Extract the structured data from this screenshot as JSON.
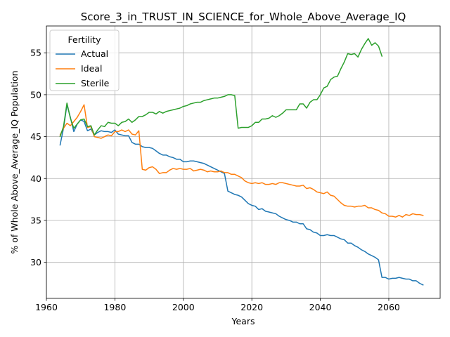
{
  "chart_data": {
    "type": "line",
    "title": "Score_3_in_TRUST_IN_SCIENCE_for_Whole_Above_Average_IQ",
    "xlabel": "Years",
    "ylabel": "% of Whole Above_Average_IQ Population",
    "xlim": [
      1960,
      2075
    ],
    "ylim": [
      25.7,
      58.2
    ],
    "xticks": [
      1960,
      1980,
      2000,
      2020,
      2040,
      2060
    ],
    "yticks": [
      30,
      35,
      40,
      45,
      50,
      55
    ],
    "grid": true,
    "legend": {
      "title": "Fertility",
      "placement": "top-left"
    },
    "series": [
      {
        "name": "Actual",
        "color": "#1f77b4",
        "x": [
          1964,
          1965,
          1966,
          1967,
          1968,
          1969,
          1970,
          1971,
          1972,
          1973,
          1974,
          1975,
          1976,
          1977,
          1978,
          1979,
          1980,
          1981,
          1982,
          1983,
          1984,
          1985,
          1986,
          1987,
          1988,
          1989,
          1990,
          1991,
          1992,
          1993,
          1994,
          1995,
          1996,
          1997,
          1998,
          1999,
          2000,
          2001,
          2002,
          2003,
          2004,
          2005,
          2006,
          2007,
          2008,
          2009,
          2010,
          2011,
          2012,
          2013,
          2014,
          2015,
          2016,
          2017,
          2018,
          2019,
          2020,
          2021,
          2022,
          2023,
          2024,
          2025,
          2026,
          2027,
          2028,
          2029,
          2030,
          2031,
          2032,
          2033,
          2034,
          2035,
          2036,
          2037,
          2038,
          2039,
          2040,
          2041,
          2042,
          2043,
          2044,
          2045,
          2046,
          2047,
          2048,
          2049,
          2050,
          2051,
          2052,
          2053,
          2054,
          2055,
          2056,
          2057,
          2058,
          2059,
          2060,
          2061,
          2062,
          2063,
          2064,
          2065,
          2066,
          2067,
          2068,
          2069,
          2070
        ],
        "y": [
          44.0,
          46.0,
          48.8,
          47.3,
          45.6,
          46.5,
          47.0,
          46.8,
          45.7,
          45.9,
          45.2,
          45.5,
          45.7,
          45.6,
          45.6,
          45.5,
          45.8,
          45.3,
          45.2,
          45.1,
          45.1,
          44.3,
          44.1,
          44.1,
          43.8,
          43.7,
          43.7,
          43.6,
          43.3,
          43.0,
          42.8,
          42.8,
          42.6,
          42.5,
          42.3,
          42.3,
          42.0,
          42.0,
          42.1,
          42.1,
          42.0,
          41.9,
          41.8,
          41.6,
          41.4,
          41.2,
          41.0,
          40.8,
          40.6,
          38.5,
          38.3,
          38.1,
          38.0,
          37.8,
          37.4,
          37.0,
          36.8,
          36.7,
          36.3,
          36.4,
          36.1,
          36.0,
          35.9,
          35.8,
          35.5,
          35.3,
          35.1,
          35.0,
          34.8,
          34.8,
          34.6,
          34.6,
          34.0,
          33.9,
          33.6,
          33.5,
          33.2,
          33.2,
          33.3,
          33.2,
          33.2,
          33.0,
          32.8,
          32.7,
          32.3,
          32.3,
          32.0,
          31.8,
          31.5,
          31.3,
          31.0,
          30.8,
          30.6,
          30.3,
          28.2,
          28.2,
          28.0,
          28.1,
          28.1,
          28.2,
          28.1,
          28.0,
          28.0,
          27.8,
          27.8,
          27.5,
          27.3
        ]
      },
      {
        "name": "Ideal",
        "color": "#ff7f0e",
        "x": [
          1964,
          1965,
          1966,
          1967,
          1968,
          1969,
          1970,
          1971,
          1972,
          1973,
          1974,
          1975,
          1976,
          1977,
          1978,
          1979,
          1980,
          1981,
          1982,
          1983,
          1984,
          1985,
          1986,
          1987,
          1988,
          1989,
          1990,
          1991,
          1992,
          1993,
          1994,
          1995,
          1996,
          1997,
          1998,
          1999,
          2000,
          2001,
          2002,
          2003,
          2004,
          2005,
          2006,
          2007,
          2008,
          2009,
          2010,
          2011,
          2012,
          2013,
          2014,
          2015,
          2016,
          2017,
          2018,
          2019,
          2020,
          2021,
          2022,
          2023,
          2024,
          2025,
          2026,
          2027,
          2028,
          2029,
          2030,
          2031,
          2032,
          2033,
          2034,
          2035,
          2036,
          2037,
          2038,
          2039,
          2040,
          2041,
          2042,
          2043,
          2044,
          2045,
          2046,
          2047,
          2048,
          2049,
          2050,
          2051,
          2052,
          2053,
          2054,
          2055,
          2056,
          2057,
          2058,
          2059,
          2060,
          2061,
          2062,
          2063,
          2064,
          2065,
          2066,
          2067,
          2068,
          2069,
          2070
        ],
        "y": [
          45.2,
          46.0,
          46.6,
          46.3,
          46.8,
          47.3,
          48.0,
          48.8,
          46.1,
          46.2,
          45.0,
          44.9,
          44.8,
          45.0,
          45.2,
          45.1,
          45.6,
          45.6,
          45.8,
          45.6,
          45.8,
          45.3,
          45.2,
          45.7,
          41.1,
          41.0,
          41.3,
          41.4,
          41.1,
          40.6,
          40.7,
          40.7,
          41.0,
          41.2,
          41.1,
          41.2,
          41.1,
          41.1,
          41.2,
          40.9,
          41.0,
          41.1,
          41.0,
          40.8,
          40.9,
          40.8,
          40.8,
          40.9,
          40.7,
          40.7,
          40.5,
          40.5,
          40.3,
          40.1,
          39.7,
          39.5,
          39.4,
          39.5,
          39.4,
          39.5,
          39.3,
          39.3,
          39.4,
          39.3,
          39.5,
          39.5,
          39.4,
          39.3,
          39.2,
          39.1,
          39.1,
          39.2,
          38.8,
          38.9,
          38.7,
          38.4,
          38.3,
          38.2,
          38.4,
          38.0,
          37.9,
          37.5,
          37.1,
          36.8,
          36.7,
          36.7,
          36.6,
          36.7,
          36.7,
          36.8,
          36.5,
          36.5,
          36.3,
          36.2,
          35.9,
          35.8,
          35.5,
          35.5,
          35.4,
          35.6,
          35.4,
          35.7,
          35.6,
          35.8,
          35.7,
          35.7,
          35.6
        ]
      },
      {
        "name": "Sterile",
        "color": "#2ca02c",
        "x": [
          1964,
          1965,
          1966,
          1967,
          1968,
          1969,
          1970,
          1971,
          1972,
          1973,
          1974,
          1975,
          1976,
          1977,
          1978,
          1979,
          1980,
          1981,
          1982,
          1983,
          1984,
          1985,
          1986,
          1987,
          1988,
          1989,
          1990,
          1991,
          1992,
          1993,
          1994,
          1995,
          1996,
          1997,
          1998,
          1999,
          2000,
          2001,
          2002,
          2003,
          2004,
          2005,
          2006,
          2007,
          2008,
          2009,
          2010,
          2011,
          2012,
          2013,
          2014,
          2015,
          2016,
          2017,
          2018,
          2019,
          2020,
          2021,
          2022,
          2023,
          2024,
          2025,
          2026,
          2027,
          2028,
          2029,
          2030,
          2031,
          2032,
          2033,
          2034,
          2035,
          2036,
          2037,
          2038,
          2039,
          2040,
          2041,
          2042,
          2043,
          2044,
          2045,
          2046,
          2047,
          2048,
          2049,
          2050,
          2051,
          2052,
          2053,
          2054,
          2055,
          2056,
          2057,
          2058
        ],
        "y": [
          45.0,
          46.2,
          49.0,
          47.2,
          46.0,
          46.5,
          47.0,
          47.1,
          46.2,
          46.3,
          45.2,
          45.8,
          46.3,
          46.2,
          46.7,
          46.6,
          46.6,
          46.3,
          46.7,
          46.8,
          47.1,
          46.7,
          47.0,
          47.4,
          47.4,
          47.6,
          47.9,
          47.9,
          47.7,
          48.0,
          47.8,
          48.0,
          48.1,
          48.2,
          48.3,
          48.4,
          48.6,
          48.7,
          48.9,
          49.0,
          49.1,
          49.1,
          49.3,
          49.4,
          49.5,
          49.6,
          49.6,
          49.7,
          49.8,
          50.0,
          50.0,
          49.9,
          46.0,
          46.1,
          46.1,
          46.1,
          46.3,
          46.7,
          46.7,
          47.1,
          47.1,
          47.2,
          47.5,
          47.3,
          47.5,
          47.8,
          48.2,
          48.2,
          48.2,
          48.2,
          48.9,
          48.9,
          48.4,
          49.1,
          49.4,
          49.4,
          50.0,
          50.8,
          51.0,
          51.8,
          52.1,
          52.2,
          53.1,
          53.9,
          54.9,
          54.8,
          54.9,
          54.5,
          55.4,
          56.1,
          56.7,
          55.9,
          56.2,
          55.8,
          54.6
        ]
      }
    ]
  }
}
